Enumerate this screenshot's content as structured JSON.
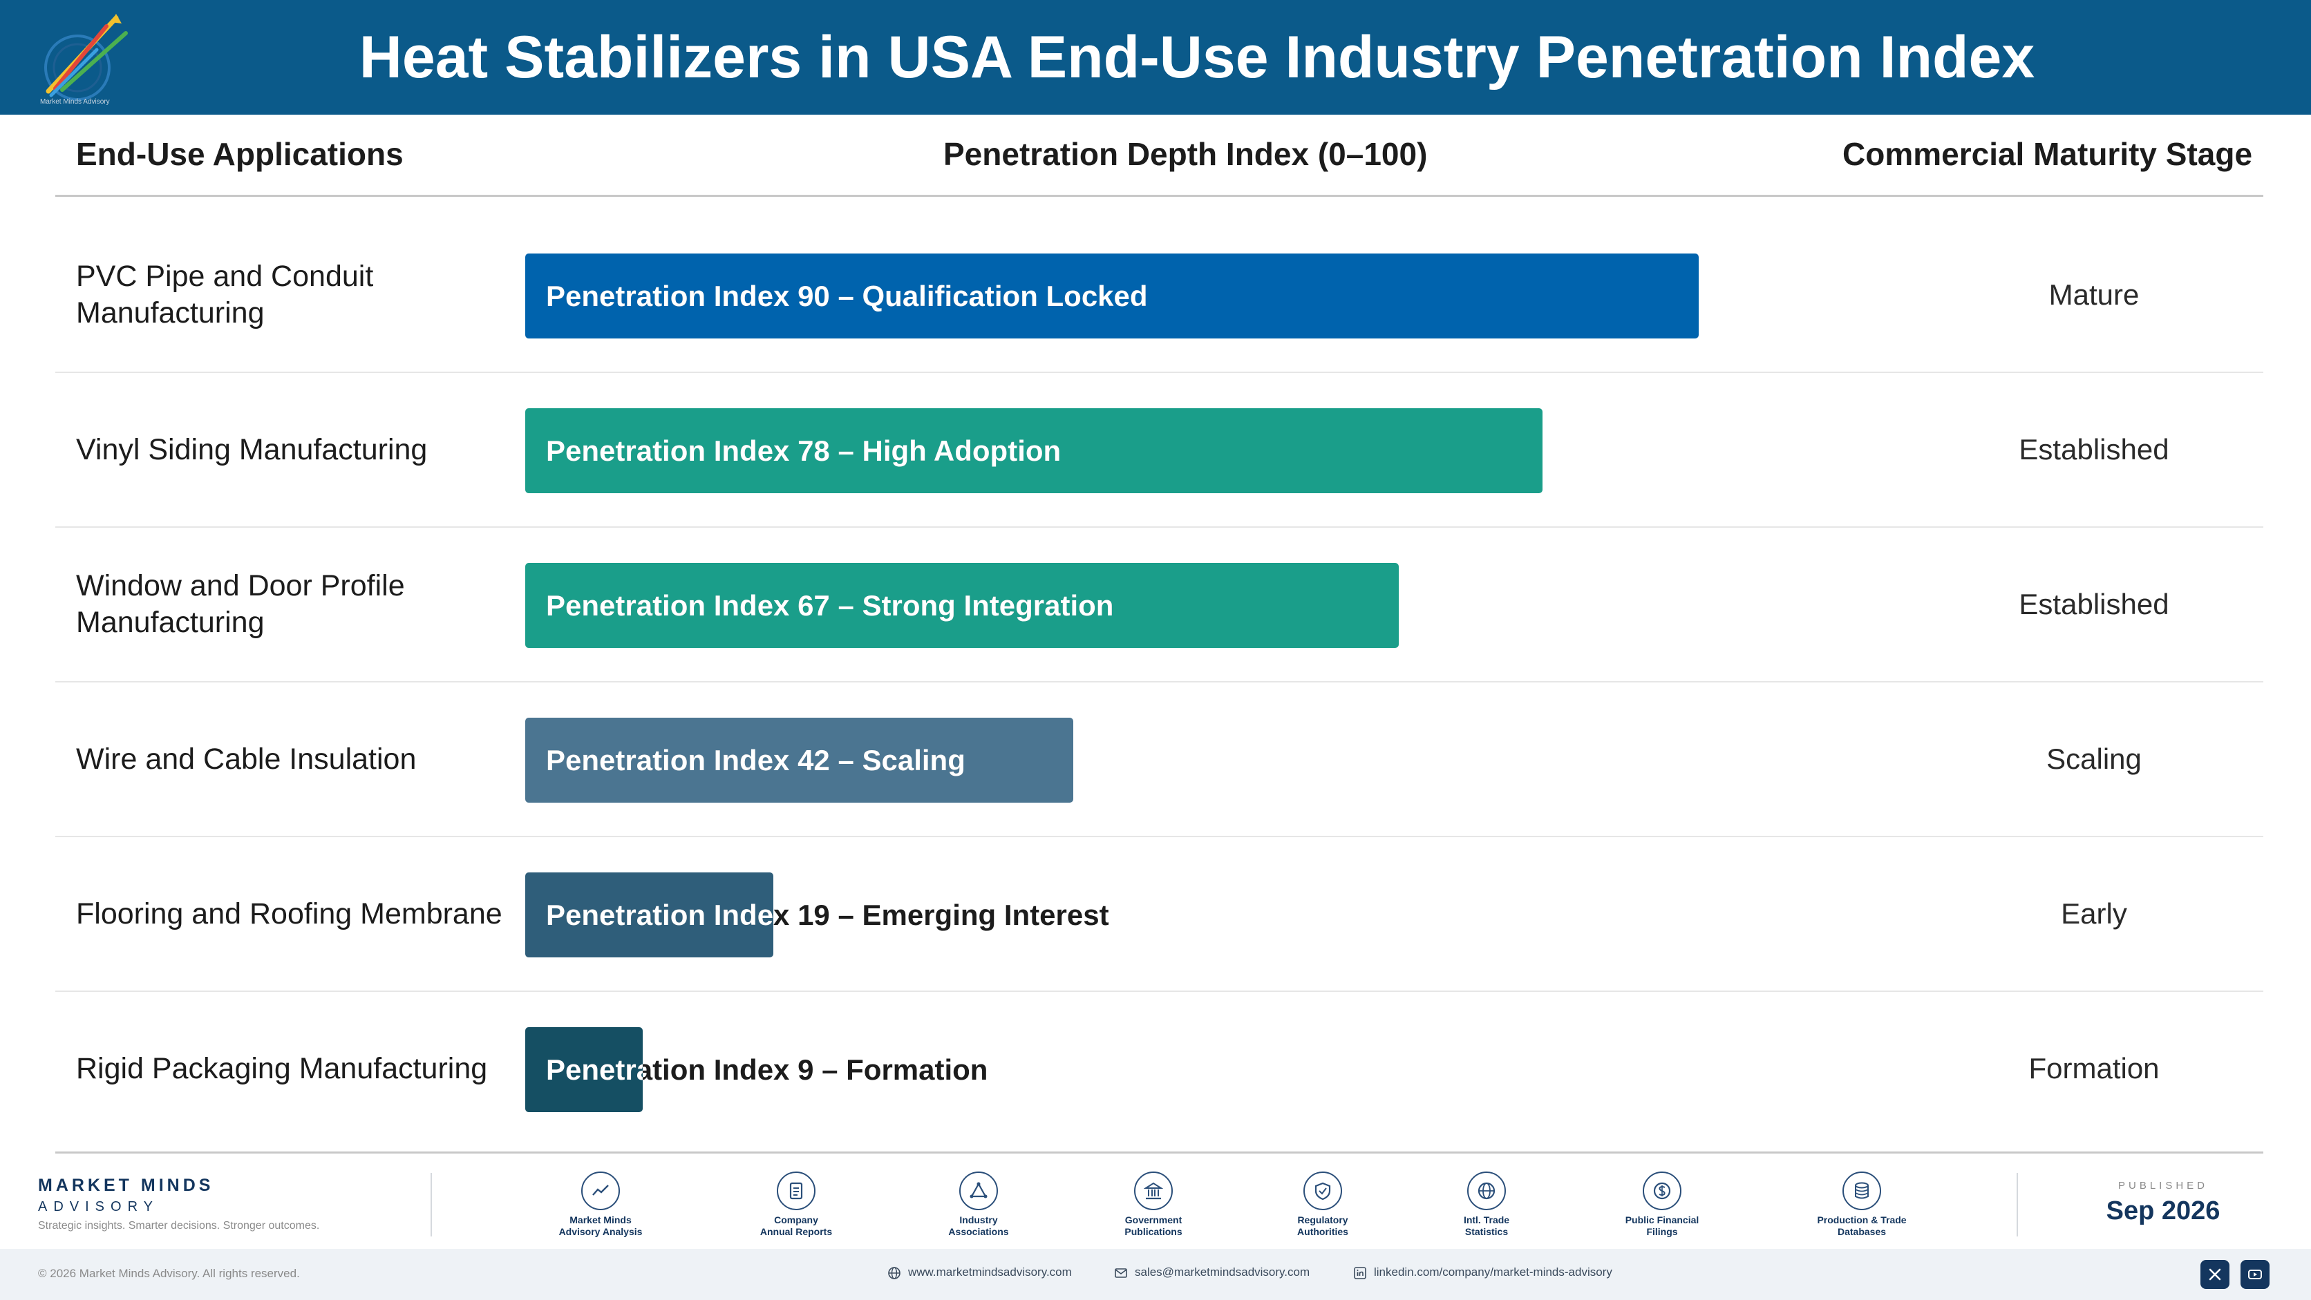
{
  "header": {
    "title": "Heat Stabilizers in USA End-Use Industry Penetration Index",
    "logo_text": "Market Minds Advisory"
  },
  "columns": {
    "applications": "End-Use Applications",
    "depth": "Penetration Depth Index (0–100)",
    "stage": "Commercial Maturity Stage"
  },
  "chart_data": {
    "type": "bar",
    "orientation": "horizontal",
    "xlim": [
      0,
      100
    ],
    "categories": [
      "PVC Pipe and Conduit Manufacturing",
      "Vinyl Siding Manufacturing",
      "Window and Door Profile Manufacturing",
      "Wire and Cable Insulation",
      "Flooring and Roofing Membrane",
      "Rigid Packaging Manufacturing"
    ],
    "values": [
      90,
      78,
      67,
      42,
      19,
      9
    ],
    "bar_labels": [
      "Penetration Index 90 – Qualification Locked",
      "Penetration Index 78 – High Adoption",
      "Penetration Index 67 – Strong Integration",
      "Penetration Index 42 – Scaling",
      "Penetration Index 19 – Emerging Interest",
      "Penetration Index 9 – Formation"
    ],
    "stages": [
      "Mature",
      "Established",
      "Established",
      "Scaling",
      "Early",
      "Formation"
    ],
    "colors": [
      "#0063ad",
      "#1a9e8a",
      "#1a9e8a",
      "#4b7591",
      "#2f5e7a",
      "#154f63"
    ]
  },
  "footer": {
    "brand_name": "MARKET MINDS",
    "brand_sub": "ADVISORY",
    "brand_tag": "Strategic insights. Smarter decisions. Stronger outcomes.",
    "sources": [
      {
        "label1": "Market Minds",
        "label2": "Advisory Analysis",
        "icon": "chart-line-icon"
      },
      {
        "label1": "Company",
        "label2": "Annual Reports",
        "icon": "document-icon"
      },
      {
        "label1": "Industry",
        "label2": "Associations",
        "icon": "network-icon"
      },
      {
        "label1": "Government",
        "label2": "Publications",
        "icon": "building-icon"
      },
      {
        "label1": "Regulatory",
        "label2": "Authorities",
        "icon": "shield-icon"
      },
      {
        "label1": "Intl. Trade",
        "label2": "Statistics",
        "icon": "globe-icon"
      },
      {
        "label1": "Public Financial",
        "label2": "Filings",
        "icon": "dollar-icon"
      },
      {
        "label1": "Production & Trade",
        "label2": "Databases",
        "icon": "database-icon"
      }
    ],
    "published_label": "PUBLISHED",
    "published_date": "Sep 2026",
    "copyright": "© 2026 Market Minds Advisory. All rights reserved.",
    "website": "www.marketmindsadvisory.com",
    "email": "sales@marketmindsadvisory.com",
    "linkedin": "linkedin.com/company/market-minds-advisory"
  }
}
